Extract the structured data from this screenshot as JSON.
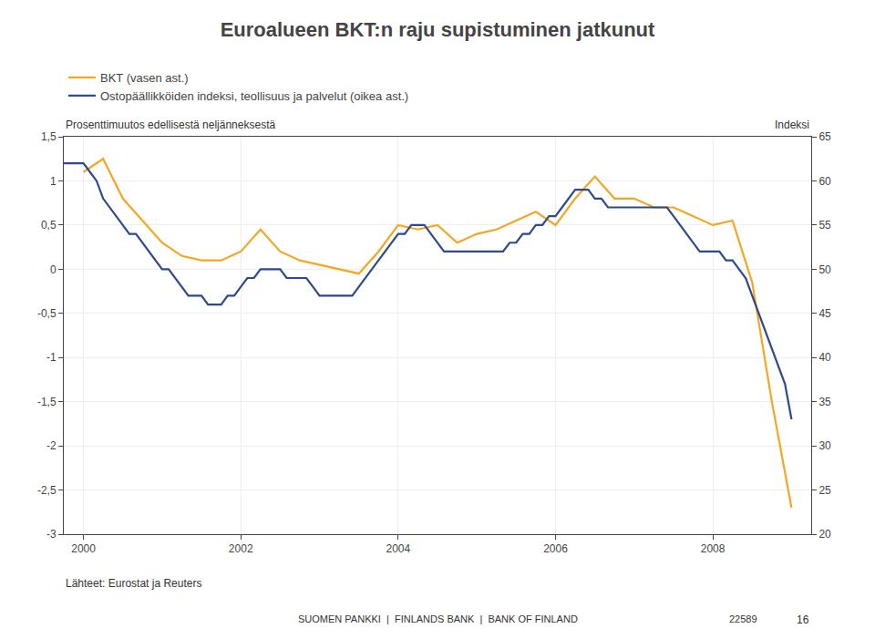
{
  "chart_data": {
    "type": "line",
    "title": "Euroalueen BKT:n raju supistuminen jatkunut",
    "ylabel": "Prosenttimuutos edellisestä neljänneksestä",
    "y2label": "Indeksi",
    "annotations": [
      "Lähteet: Eurostat ja Reuters",
      "SUOMEN PANKKI  |  FINLANDS BANK  |  BANK OF FINLAND",
      "22589",
      "16"
    ],
    "legend": "upper left",
    "grid": true,
    "xlim": [
      1999.75,
      2009.25
    ],
    "xticks": [
      2000,
      2002,
      2004,
      2006,
      2008
    ],
    "ylim": [
      -3,
      1.5
    ],
    "yticks": [
      -3,
      {
        "value": -2.5,
        "label": "-2,5"
      },
      -2,
      {
        "value": -1.5,
        "label": "-1,5"
      },
      -1,
      {
        "value": -0.5,
        "label": "-0,5"
      },
      0,
      {
        "value": 0.5,
        "label": "0,5"
      },
      1,
      {
        "value": 1.5,
        "label": "1,5"
      }
    ],
    "y2lim": [
      20,
      65
    ],
    "y2ticks": [
      20,
      25,
      30,
      35,
      40,
      45,
      50,
      55,
      60,
      65
    ],
    "series": [
      {
        "name": "BKT (vasen ast.)",
        "color": "#f5a623",
        "axis": "y",
        "x": [
          2000.0,
          2000.25,
          2000.5,
          2000.75,
          2001.0,
          2001.25,
          2001.5,
          2001.75,
          2002.0,
          2002.25,
          2002.5,
          2002.75,
          2003.0,
          2003.25,
          2003.5,
          2003.75,
          2004.0,
          2004.25,
          2004.5,
          2004.75,
          2005.0,
          2005.25,
          2005.5,
          2005.75,
          2006.0,
          2006.25,
          2006.5,
          2006.75,
          2007.0,
          2007.25,
          2007.5,
          2007.75,
          2008.0,
          2008.25,
          2008.5,
          2008.75,
          2009.0
        ],
        "values": [
          1.1,
          1.25,
          0.8,
          0.55,
          0.3,
          0.15,
          0.1,
          0.1,
          0.2,
          0.45,
          0.2,
          0.1,
          0.05,
          0.0,
          -0.05,
          0.2,
          0.5,
          0.45,
          0.5,
          0.3,
          0.4,
          0.45,
          0.55,
          0.65,
          0.5,
          0.8,
          1.05,
          0.8,
          0.8,
          0.7,
          0.7,
          0.6,
          0.5,
          0.55,
          -0.15,
          -1.5,
          -2.7
        ]
      },
      {
        "name": "Ostopäällikköiden indeksi, teollisuus ja palvelut (oikea ast.)",
        "color": "#2c4a8c",
        "axis": "y2",
        "x": [
          1999.75,
          2000.0,
          2000.083,
          2000.167,
          2000.25,
          2000.333,
          2000.417,
          2000.5,
          2000.583,
          2000.667,
          2000.75,
          2000.833,
          2000.917,
          2001.0,
          2001.083,
          2001.167,
          2001.25,
          2001.333,
          2001.417,
          2001.5,
          2001.583,
          2001.667,
          2001.75,
          2001.833,
          2001.917,
          2002.0,
          2002.083,
          2002.167,
          2002.25,
          2002.333,
          2002.417,
          2002.5,
          2002.583,
          2002.667,
          2002.75,
          2002.833,
          2002.917,
          2003.0,
          2003.083,
          2003.167,
          2003.25,
          2003.333,
          2003.417,
          2003.5,
          2003.583,
          2003.667,
          2003.75,
          2003.833,
          2003.917,
          2004.0,
          2004.083,
          2004.167,
          2004.25,
          2004.333,
          2004.417,
          2004.5,
          2004.583,
          2004.667,
          2004.75,
          2004.833,
          2004.917,
          2005.0,
          2005.083,
          2005.167,
          2005.25,
          2005.333,
          2005.417,
          2005.5,
          2005.583,
          2005.667,
          2005.75,
          2005.833,
          2005.917,
          2006.0,
          2006.083,
          2006.167,
          2006.25,
          2006.333,
          2006.417,
          2006.5,
          2006.583,
          2006.667,
          2006.75,
          2006.833,
          2006.917,
          2007.0,
          2007.083,
          2007.167,
          2007.25,
          2007.333,
          2007.417,
          2007.5,
          2007.583,
          2007.667,
          2007.75,
          2007.833,
          2007.917,
          2008.0,
          2008.083,
          2008.167,
          2008.25,
          2008.333,
          2008.417,
          2008.5,
          2008.583,
          2008.667,
          2008.75,
          2008.833,
          2008.917,
          2009.0
        ],
        "values": [
          62,
          62,
          61,
          60,
          58,
          57,
          56,
          55,
          54,
          54,
          53,
          52,
          51,
          50,
          50,
          49,
          48,
          47,
          47,
          47,
          46,
          46,
          46,
          47,
          47,
          48,
          49,
          49,
          50,
          50,
          50,
          50,
          49,
          49,
          49,
          49,
          48,
          47,
          47,
          47,
          47,
          47,
          47,
          48,
          49,
          50,
          51,
          52,
          53,
          54,
          54,
          55,
          55,
          55,
          54,
          53,
          52,
          52,
          52,
          52,
          52,
          52,
          52,
          52,
          52,
          52,
          53,
          53,
          54,
          54,
          55,
          55,
          56,
          56,
          57,
          58,
          59,
          59,
          59,
          58,
          58,
          57,
          57,
          57,
          57,
          57,
          57,
          57,
          57,
          57,
          57,
          56,
          55,
          54,
          53,
          52,
          52,
          52,
          52,
          51,
          51,
          50,
          49,
          47,
          45,
          43,
          41,
          39,
          37,
          33
        ]
      }
    ]
  }
}
